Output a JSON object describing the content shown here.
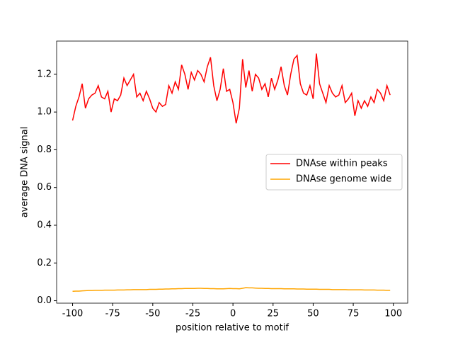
{
  "chart_data": {
    "type": "line",
    "xlabel": "position relative to motif",
    "ylabel": "average DNA signal",
    "x": [
      -100,
      -98,
      -96,
      -94,
      -92,
      -90,
      -88,
      -86,
      -84,
      -82,
      -80,
      -78,
      -76,
      -74,
      -72,
      -70,
      -68,
      -66,
      -64,
      -62,
      -60,
      -58,
      -56,
      -54,
      -52,
      -50,
      -48,
      -46,
      -44,
      -42,
      -40,
      -38,
      -36,
      -34,
      -32,
      -30,
      -28,
      -26,
      -24,
      -22,
      -20,
      -18,
      -16,
      -14,
      -12,
      -10,
      -8,
      -6,
      -4,
      -2,
      0,
      2,
      4,
      6,
      8,
      10,
      12,
      14,
      16,
      18,
      20,
      22,
      24,
      26,
      28,
      30,
      32,
      34,
      36,
      38,
      40,
      42,
      44,
      46,
      48,
      50,
      52,
      54,
      56,
      58,
      60,
      62,
      64,
      66,
      68,
      70,
      72,
      74,
      76,
      78,
      80,
      82,
      84,
      86,
      88,
      90,
      92,
      94,
      96,
      98
    ],
    "series": [
      {
        "name": "DNAse within peaks",
        "color": "red",
        "values": [
          0.955,
          1.03,
          1.08,
          1.15,
          1.02,
          1.07,
          1.09,
          1.1,
          1.14,
          1.08,
          1.07,
          1.11,
          1.0,
          1.07,
          1.06,
          1.09,
          1.18,
          1.14,
          1.17,
          1.2,
          1.08,
          1.1,
          1.06,
          1.11,
          1.07,
          1.02,
          1.0,
          1.05,
          1.03,
          1.04,
          1.14,
          1.1,
          1.16,
          1.12,
          1.25,
          1.2,
          1.12,
          1.21,
          1.17,
          1.22,
          1.2,
          1.16,
          1.24,
          1.29,
          1.14,
          1.06,
          1.12,
          1.23,
          1.11,
          1.12,
          1.05,
          0.94,
          1.02,
          1.28,
          1.13,
          1.22,
          1.11,
          1.2,
          1.18,
          1.12,
          1.15,
          1.08,
          1.18,
          1.12,
          1.17,
          1.24,
          1.14,
          1.09,
          1.2,
          1.28,
          1.3,
          1.15,
          1.1,
          1.09,
          1.14,
          1.07,
          1.31,
          1.15,
          1.1,
          1.05,
          1.14,
          1.1,
          1.08,
          1.09,
          1.14,
          1.05,
          1.07,
          1.1,
          0.98,
          1.06,
          1.02,
          1.06,
          1.03,
          1.08,
          1.05,
          1.12,
          1.1,
          1.06,
          1.14,
          1.09
        ]
      },
      {
        "name": "DNAse genome wide",
        "color": "orange",
        "values": [
          0.05,
          0.051,
          0.051,
          0.052,
          0.053,
          0.054,
          0.054,
          0.055,
          0.055,
          0.055,
          0.056,
          0.056,
          0.056,
          0.056,
          0.057,
          0.057,
          0.057,
          0.058,
          0.058,
          0.059,
          0.059,
          0.059,
          0.059,
          0.059,
          0.06,
          0.06,
          0.06,
          0.061,
          0.061,
          0.062,
          0.062,
          0.063,
          0.063,
          0.064,
          0.064,
          0.065,
          0.065,
          0.065,
          0.065,
          0.066,
          0.066,
          0.065,
          0.065,
          0.064,
          0.064,
          0.063,
          0.063,
          0.063,
          0.064,
          0.065,
          0.064,
          0.064,
          0.063,
          0.066,
          0.069,
          0.068,
          0.068,
          0.067,
          0.066,
          0.066,
          0.065,
          0.065,
          0.064,
          0.064,
          0.064,
          0.064,
          0.063,
          0.063,
          0.063,
          0.063,
          0.062,
          0.062,
          0.062,
          0.061,
          0.061,
          0.061,
          0.061,
          0.06,
          0.06,
          0.06,
          0.06,
          0.059,
          0.059,
          0.059,
          0.059,
          0.059,
          0.058,
          0.058,
          0.058,
          0.058,
          0.058,
          0.057,
          0.057,
          0.057,
          0.057,
          0.056,
          0.056,
          0.056,
          0.055,
          0.055
        ]
      }
    ],
    "xlim": [
      -109.95,
      108.95
    ],
    "xticks": [
      -100,
      -75,
      -50,
      -25,
      0,
      25,
      50,
      75,
      100
    ],
    "ylim": [
      -0.013,
      1.376
    ],
    "yticks": [
      {
        "value": 0,
        "label": "0.0"
      },
      0.2,
      0.4,
      0.6,
      0.8,
      {
        "value": 1,
        "label": "1.0"
      },
      1.2
    ],
    "legend": "center right"
  }
}
